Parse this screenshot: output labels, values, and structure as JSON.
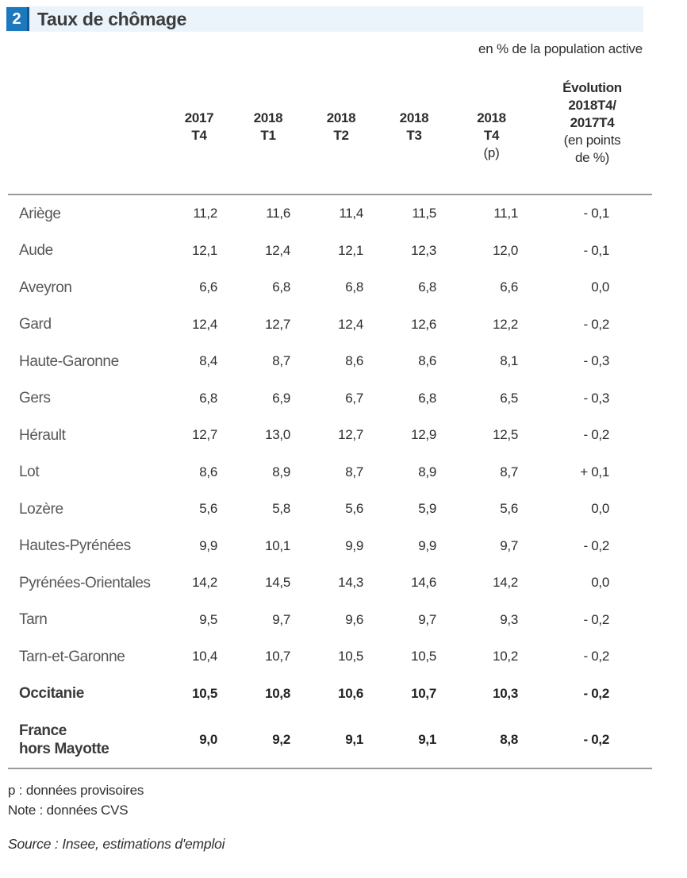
{
  "header": {
    "badge": "2",
    "title": "Taux de chômage",
    "subtitle": "en % de la population  active"
  },
  "colors": {
    "badge_blue": "#1e78be",
    "badge_blue_dark": "#14578f",
    "title_bar_bg": "#ecf4fb",
    "rule_gray": "#98999b"
  },
  "table": {
    "columns": [
      {
        "lines": [
          {
            "t": "2017",
            "b": true
          },
          {
            "t": "T4",
            "b": true
          }
        ]
      },
      {
        "lines": [
          {
            "t": "2018",
            "b": true
          },
          {
            "t": "T1",
            "b": true
          }
        ]
      },
      {
        "lines": [
          {
            "t": "2018",
            "b": true
          },
          {
            "t": "T2",
            "b": true
          }
        ]
      },
      {
        "lines": [
          {
            "t": "2018",
            "b": true
          },
          {
            "t": "T3",
            "b": true
          }
        ]
      },
      {
        "lines": [
          {
            "t": "2018",
            "b": true
          },
          {
            "t": "T4",
            "b": true
          },
          {
            "t": "(p)",
            "b": false
          }
        ]
      },
      {
        "evol": true,
        "lines": [
          {
            "t": "Évolution",
            "b": true
          },
          {
            "t": "2018T4/",
            "b": true
          },
          {
            "t": "2017T4",
            "b": true
          },
          {
            "t": "(en points",
            "b": false
          },
          {
            "t": "de %)",
            "b": false
          }
        ]
      }
    ],
    "rows": [
      {
        "label_lines": [
          "Ariège"
        ],
        "bold": false,
        "values": [
          "11,2",
          "11,6",
          "11,4",
          "11,5",
          "11,1",
          "- 0,1"
        ]
      },
      {
        "label_lines": [
          "Aude"
        ],
        "bold": false,
        "values": [
          "12,1",
          "12,4",
          "12,1",
          "12,3",
          "12,0",
          "- 0,1"
        ]
      },
      {
        "label_lines": [
          "Aveyron"
        ],
        "bold": false,
        "values": [
          "6,6",
          "6,8",
          "6,8",
          "6,8",
          "6,6",
          "0,0"
        ]
      },
      {
        "label_lines": [
          "Gard"
        ],
        "bold": false,
        "values": [
          "12,4",
          "12,7",
          "12,4",
          "12,6",
          "12,2",
          "- 0,2"
        ]
      },
      {
        "label_lines": [
          "Haute-Garonne"
        ],
        "bold": false,
        "values": [
          "8,4",
          "8,7",
          "8,6",
          "8,6",
          "8,1",
          "- 0,3"
        ]
      },
      {
        "label_lines": [
          "Gers"
        ],
        "bold": false,
        "values": [
          "6,8",
          "6,9",
          "6,7",
          "6,8",
          "6,5",
          "- 0,3"
        ]
      },
      {
        "label_lines": [
          "Hérault"
        ],
        "bold": false,
        "values": [
          "12,7",
          "13,0",
          "12,7",
          "12,9",
          "12,5",
          "- 0,2"
        ]
      },
      {
        "label_lines": [
          "Lot"
        ],
        "bold": false,
        "values": [
          "8,6",
          "8,9",
          "8,7",
          "8,9",
          "8,7",
          "+ 0,1"
        ]
      },
      {
        "label_lines": [
          "Lozère"
        ],
        "bold": false,
        "values": [
          "5,6",
          "5,8",
          "5,6",
          "5,9",
          "5,6",
          "0,0"
        ]
      },
      {
        "label_lines": [
          "Hautes-Pyrénées"
        ],
        "bold": false,
        "values": [
          "9,9",
          "10,1",
          "9,9",
          "9,9",
          "9,7",
          "- 0,2"
        ]
      },
      {
        "label_lines": [
          "Pyrénées-Orientales"
        ],
        "bold": false,
        "values": [
          "14,2",
          "14,5",
          "14,3",
          "14,6",
          "14,2",
          "0,0"
        ]
      },
      {
        "label_lines": [
          "Tarn"
        ],
        "bold": false,
        "values": [
          "9,5",
          "9,7",
          "9,6",
          "9,7",
          "9,3",
          "- 0,2"
        ]
      },
      {
        "label_lines": [
          "Tarn-et-Garonne"
        ],
        "bold": false,
        "values": [
          "10,4",
          "10,7",
          "10,5",
          "10,5",
          "10,2",
          "- 0,2"
        ]
      },
      {
        "label_lines": [
          "Occitanie"
        ],
        "bold": true,
        "values": [
          "10,5",
          "10,8",
          "10,6",
          "10,7",
          "10,3",
          "- 0,2"
        ]
      },
      {
        "label_lines": [
          "France",
          "hors Mayotte"
        ],
        "bold": true,
        "values": [
          "9,0",
          "9,2",
          "9,1",
          "9,1",
          "8,8",
          "- 0,2"
        ]
      }
    ]
  },
  "footnotes": {
    "line1": "p : données provisoires",
    "line2": "Note : données CVS"
  },
  "source": "Source : Insee, estimations d'emploi"
}
